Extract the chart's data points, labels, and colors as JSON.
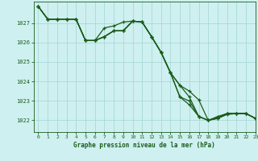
{
  "title": "Graphe pression niveau de la mer (hPa)",
  "background_color": "#cff0f0",
  "grid_color": "#aad8d8",
  "line_color": "#1a5c1a",
  "xlim": [
    -0.5,
    23
  ],
  "ylim": [
    1021.4,
    1028.1
  ],
  "yticks": [
    1022,
    1023,
    1024,
    1025,
    1026,
    1027
  ],
  "xticks": [
    0,
    1,
    2,
    3,
    4,
    5,
    6,
    7,
    8,
    9,
    10,
    11,
    12,
    13,
    14,
    15,
    16,
    17,
    18,
    19,
    20,
    21,
    22,
    23
  ],
  "series": [
    [
      1027.85,
      1027.2,
      1027.2,
      1027.2,
      1027.2,
      1026.1,
      1026.1,
      1026.3,
      1026.6,
      1026.6,
      1027.1,
      1027.05,
      1026.3,
      1025.5,
      1024.45,
      1023.8,
      1023.2,
      1022.2,
      1022.0,
      1022.1,
      1022.3,
      1022.35,
      1022.35,
      1022.1
    ],
    [
      1027.85,
      1027.2,
      1027.2,
      1027.2,
      1027.2,
      1026.1,
      1026.1,
      1026.75,
      1026.85,
      1027.05,
      1027.1,
      1027.05,
      1026.3,
      1025.5,
      1024.45,
      1023.2,
      1023.0,
      1022.2,
      1022.0,
      1022.1,
      1022.35,
      1022.35,
      1022.35,
      1022.1
    ],
    [
      1027.85,
      1027.2,
      1027.2,
      1027.2,
      1027.2,
      1026.1,
      1026.1,
      1026.3,
      1026.6,
      1026.6,
      1027.1,
      1027.05,
      1026.3,
      1025.5,
      1024.45,
      1023.2,
      1022.8,
      1022.2,
      1022.0,
      1022.2,
      1022.35,
      1022.35,
      1022.35,
      1022.1
    ],
    [
      1027.85,
      1027.2,
      1027.2,
      1027.2,
      1027.2,
      1026.1,
      1026.1,
      1026.3,
      1026.6,
      1026.6,
      1027.1,
      1027.05,
      1026.3,
      1025.5,
      1024.45,
      1023.8,
      1023.5,
      1023.05,
      1022.0,
      1022.15,
      1022.35,
      1022.35,
      1022.35,
      1022.1
    ]
  ]
}
